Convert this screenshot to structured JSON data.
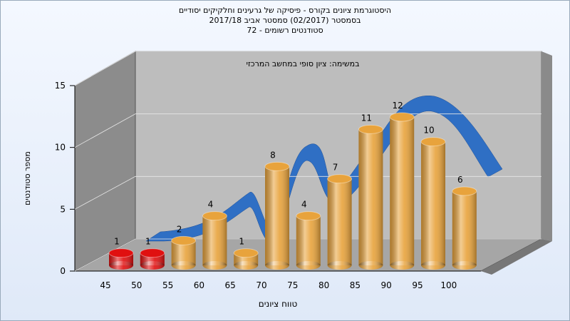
{
  "chart_data": {
    "type": "bar",
    "title": [
      "היסטוגרמת ציונים בקורס - פיסיקה של גרעינים וחלקיקים יסודיים",
      "בסמסטר  (02/2017)  סמסטר אביב 2017/18",
      "סטודנטים רשומים - 72"
    ],
    "annotation": "במשימה: ציון סופי במחשב המרכזי",
    "x_label": "טווח ציונים",
    "y_label": "מספר סטודנטים",
    "categories": [
      "45",
      "50",
      "55",
      "60",
      "65",
      "70",
      "75",
      "80",
      "85",
      "90",
      "95",
      "100"
    ],
    "values": [
      1,
      1,
      2,
      4,
      1,
      8,
      4,
      7,
      11,
      12,
      10,
      6
    ],
    "colors": [
      "#e01010",
      "#e01010",
      "#e8a33c",
      "#e8a33c",
      "#e8a33c",
      "#e8a33c",
      "#e8a33c",
      "#e8a33c",
      "#e8a33c",
      "#e8a33c",
      "#e8a33c",
      "#e8a33c"
    ],
    "ylim": [
      0,
      15
    ],
    "yticks": [
      0,
      5,
      10,
      15
    ],
    "grid": true
  }
}
